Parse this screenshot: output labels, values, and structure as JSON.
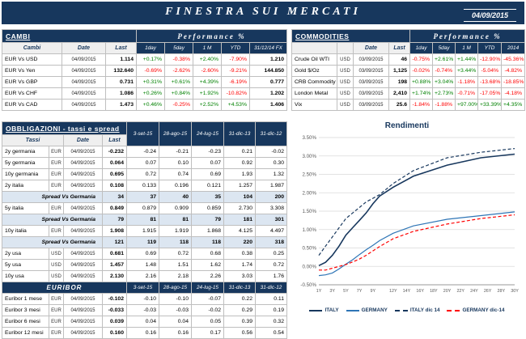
{
  "header": {
    "title": "FINESTRA SUI MERCATI",
    "date": "04/09/2015"
  },
  "colors": {
    "navy": "#17375D",
    "positive": "#008000",
    "negative": "#FF0000",
    "spread_bg": "#DCE6F1"
  },
  "cambi": {
    "title": "CAMBI",
    "perf_header": "Performance %",
    "name_header": "Cambi",
    "date_header": "Date",
    "last_header": "Last",
    "perf_cols": [
      "1day",
      "5day",
      "1 M",
      "YTD",
      "31/12/14 FX"
    ],
    "rows": [
      {
        "name": "EUR Vs USD",
        "date": "04/09/2015",
        "last": "1.114",
        "perf": [
          "+0.17%",
          "-0.38%",
          "+2.40%",
          "-7.90%"
        ],
        "fx": "1.210"
      },
      {
        "name": "EUR Vs Yen",
        "date": "04/09/2015",
        "last": "132.640",
        "perf": [
          "-0.69%",
          "-2.62%",
          "-2.60%",
          "-9.21%"
        ],
        "fx": "144.850"
      },
      {
        "name": "EUR Vs GBP",
        "date": "04/09/2015",
        "last": "0.731",
        "perf": [
          "+0.31%",
          "+0.61%",
          "+4.39%",
          "-6.19%"
        ],
        "fx": "0.777"
      },
      {
        "name": "EUR Vs CHF",
        "date": "04/09/2015",
        "last": "1.086",
        "perf": [
          "+0.26%",
          "+0.84%",
          "+1.92%",
          "-10.82%"
        ],
        "fx": "1.202"
      },
      {
        "name": "EUR Vs CAD",
        "date": "04/09/2015",
        "last": "1.473",
        "perf": [
          "+0.46%",
          "-0.25%",
          "+2.52%",
          "+4.53%"
        ],
        "fx": "1.406"
      }
    ]
  },
  "commodities": {
    "title": "COMMODITIES",
    "perf_header": "Performance %",
    "date_header": "Date",
    "last_header": "Last",
    "perf_cols": [
      "1day",
      "5day",
      "1 M",
      "YTD",
      "2014"
    ],
    "rows": [
      {
        "name": "Crude Oil WTI",
        "ccy": "USD",
        "date": "03/09/2015",
        "last": "46",
        "perf": [
          "-0.75%",
          "+2.61%",
          "+1.44%",
          "-12.90%",
          "-45.36%"
        ]
      },
      {
        "name": "Gold $/Oz",
        "ccy": "USD",
        "date": "03/09/2015",
        "last": "1,125",
        "perf": [
          "-0.02%",
          "-0.74%",
          "+3.44%",
          "-5.04%",
          "-4.82%"
        ]
      },
      {
        "name": "CRB Commodity",
        "ccy": "USD",
        "date": "03/09/2015",
        "last": "198",
        "perf": [
          "+0.88%",
          "+3.04%",
          "-1.18%",
          "-13.68%",
          "-18.85%"
        ]
      },
      {
        "name": "London Metal",
        "ccy": "USD",
        "date": "03/09/2015",
        "last": "2,410",
        "perf": [
          "+1.74%",
          "+2.73%",
          "-0.71%",
          "-17.05%",
          "-4.18%"
        ]
      },
      {
        "name": "Vix",
        "ccy": "USD",
        "date": "03/09/2015",
        "last": "25.6",
        "perf": [
          "-1.84%",
          "-1.88%",
          "+97.00%",
          "+33.39%",
          "+4.35%"
        ]
      }
    ]
  },
  "bonds": {
    "title": "OBBLIGAZIONI - tassi e spread",
    "name_header": "Tassi",
    "date_header": "Date",
    "last_header": "Last",
    "hist_cols": [
      "3-set-15",
      "28-ago-15",
      "24-lug-15",
      "31-dic-13",
      "31-dic-12"
    ],
    "rows": [
      {
        "type": "data",
        "name": "2y germania",
        "ccy": "EUR",
        "date": "04/09/2015",
        "last": "-0.232",
        "vals": [
          "-0.24",
          "-0.21",
          "-0.23",
          "0.21",
          "-0.02"
        ]
      },
      {
        "type": "data",
        "name": "5y germania",
        "ccy": "EUR",
        "date": "04/09/2015",
        "last": "0.064",
        "vals": [
          "0.07",
          "0.10",
          "0.07",
          "0.92",
          "0.30"
        ]
      },
      {
        "type": "data",
        "name": "10y germania",
        "ccy": "EUR",
        "date": "04/09/2015",
        "last": "0.695",
        "vals": [
          "0.72",
          "0.74",
          "0.69",
          "1.93",
          "1.32"
        ]
      },
      {
        "type": "data",
        "name": "2y italia",
        "ccy": "EUR",
        "date": "04/09/2015",
        "last": "0.108",
        "vals": [
          "0.133",
          "0.196",
          "0.121",
          "1.257",
          "1.987"
        ]
      },
      {
        "type": "spread",
        "name": "Spread Vs Germania",
        "last": "34",
        "vals": [
          "37",
          "40",
          "35",
          "104",
          "200"
        ]
      },
      {
        "type": "data",
        "name": "5y italia",
        "ccy": "EUR",
        "date": "04/09/2015",
        "last": "0.849",
        "vals": [
          "0.879",
          "0.909",
          "0.859",
          "2.730",
          "3.308"
        ]
      },
      {
        "type": "spread",
        "name": "Spread Vs Germania",
        "last": "79",
        "vals": [
          "81",
          "81",
          "79",
          "181",
          "301"
        ]
      },
      {
        "type": "data",
        "name": "10y italia",
        "ccy": "EUR",
        "date": "04/09/2015",
        "last": "1.908",
        "vals": [
          "1.915",
          "1.919",
          "1.868",
          "4.125",
          "4.497"
        ]
      },
      {
        "type": "spread",
        "name": "Spread Vs Germania",
        "last": "121",
        "vals": [
          "119",
          "118",
          "118",
          "220",
          "318"
        ]
      },
      {
        "type": "data",
        "name": "2y usa",
        "ccy": "USD",
        "date": "04/09/2015",
        "last": "0.681",
        "vals": [
          "0.69",
          "0.72",
          "0.68",
          "0.38",
          "0.25"
        ]
      },
      {
        "type": "data",
        "name": "5y usa",
        "ccy": "USD",
        "date": "04/09/2015",
        "last": "1.457",
        "vals": [
          "1.48",
          "1.51",
          "1.62",
          "1.74",
          "0.72"
        ]
      },
      {
        "type": "data",
        "name": "10y usa",
        "ccy": "USD",
        "date": "04/09/2015",
        "last": "2.130",
        "vals": [
          "2.16",
          "2.18",
          "2.26",
          "3.03",
          "1.76"
        ]
      }
    ],
    "euribor_title": "EURIBOR",
    "euribor_cols": [
      "3-set-15",
      "28-ago-15",
      "24-lug-15",
      "31-dic-13",
      "31-dic-12"
    ],
    "euribor_rows": [
      {
        "name": "Euribor 1 mese",
        "ccy": "EUR",
        "date": "04/09/2015",
        "last": "-0.102",
        "vals": [
          "-0.10",
          "-0.10",
          "-0.07",
          "0.22",
          "0.11"
        ]
      },
      {
        "name": "Euribor 3 mesi",
        "ccy": "EUR",
        "date": "04/09/2015",
        "last": "-0.033",
        "vals": [
          "-0.03",
          "-0.03",
          "-0.02",
          "0.29",
          "0.19"
        ]
      },
      {
        "name": "Euribor 6 mesi",
        "ccy": "EUR",
        "date": "04/09/2015",
        "last": "0.039",
        "vals": [
          "0.04",
          "0.04",
          "0.05",
          "0.39",
          "0.32"
        ]
      },
      {
        "name": "Euribor 12 mesi",
        "ccy": "EUR",
        "date": "04/09/2015",
        "last": "0.160",
        "vals": [
          "0.16",
          "0.16",
          "0.17",
          "0.56",
          "0.54"
        ]
      }
    ]
  },
  "chart_data": {
    "type": "line",
    "title": "Rendimenti",
    "xlabel": "",
    "ylabel": "",
    "ylim": [
      -0.5,
      3.5
    ],
    "y_tick_step": 0.5,
    "y_tick_labels": [
      "3.50%",
      "3.00%",
      "2.50%",
      "2.00%",
      "1.50%",
      "1.00%",
      "0.50%",
      "0.00%",
      "-0.50%"
    ],
    "x": [
      1,
      2,
      3,
      4,
      5,
      6,
      7,
      8,
      9,
      10,
      12,
      15,
      20,
      25,
      30
    ],
    "x_ticks": [
      1,
      3,
      5,
      7,
      9,
      12,
      14,
      16,
      18,
      20,
      22,
      24,
      26,
      28,
      30
    ],
    "x_tick_labels": [
      "1Y",
      "3Y",
      "5Y",
      "7Y",
      "9Y",
      "12Y",
      "14Y",
      "16Y",
      "18Y",
      "20Y",
      "22Y",
      "24Y",
      "26Y",
      "28Y",
      "30Y"
    ],
    "grid": "horizontal",
    "legend_position": "bottom",
    "series": [
      {
        "name": "ITALY",
        "color": "#17375D",
        "dash": "solid",
        "values": [
          0.02,
          0.11,
          0.3,
          0.55,
          0.85,
          1.05,
          1.25,
          1.45,
          1.7,
          1.91,
          2.15,
          2.45,
          2.75,
          2.95,
          3.05
        ]
      },
      {
        "name": "GERMANY",
        "color": "#2E75B6",
        "dash": "solid",
        "values": [
          -0.25,
          -0.23,
          -0.18,
          -0.07,
          0.06,
          0.18,
          0.32,
          0.45,
          0.57,
          0.7,
          0.9,
          1.1,
          1.28,
          1.38,
          1.48
        ]
      },
      {
        "name": "ITALY dic 14",
        "color": "#17375D",
        "dash": "dashed",
        "values": [
          0.3,
          0.55,
          0.8,
          1.05,
          1.3,
          1.45,
          1.6,
          1.75,
          1.85,
          1.95,
          2.25,
          2.6,
          2.95,
          3.1,
          3.2
        ]
      },
      {
        "name": "GERMANY dic-14",
        "color": "#FF0000",
        "dash": "dashed",
        "values": [
          -0.1,
          -0.1,
          -0.05,
          0.0,
          0.05,
          0.12,
          0.2,
          0.3,
          0.42,
          0.54,
          0.75,
          0.95,
          1.15,
          1.3,
          1.4
        ]
      }
    ]
  }
}
